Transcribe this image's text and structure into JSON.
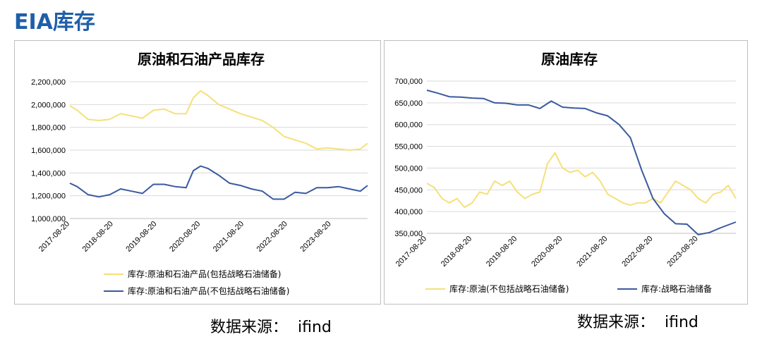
{
  "header": {
    "title": "EIA库存"
  },
  "sources": {
    "left": "数据来源：  ifind",
    "right": "数据来源：  ifind"
  },
  "colors": {
    "yellow": "#f5e07a",
    "blue": "#3a5aa0",
    "grid": "#d9d9d9",
    "title_blue": "#1f5fa9"
  },
  "chart_data": [
    {
      "type": "line",
      "title": "原油和石油产品库存",
      "ylim": [
        1000000,
        2200000
      ],
      "yticks": [
        "1,000,000",
        "1,200,000",
        "1,400,000",
        "1,600,000",
        "1,800,000",
        "2,000,000",
        "2,200,000"
      ],
      "ytick_values": [
        1000000,
        1200000,
        1400000,
        1600000,
        1800000,
        2000000,
        2200000
      ],
      "xticks": [
        "2017-08-20",
        "2018-08-20",
        "2019-08-20",
        "2020-08-20",
        "2021-08-20",
        "2022-08-20",
        "2023-08-20"
      ],
      "x_start": "2017-08",
      "x_end": "2024-06",
      "series": [
        {
          "name": "库存:原油和石油产品(包括战略石油储备)",
          "color": "#f5e07a",
          "x": [
            "2017-08",
            "2017-10",
            "2018-01",
            "2018-04",
            "2018-07",
            "2018-10",
            "2019-01",
            "2019-04",
            "2019-07",
            "2019-10",
            "2020-01",
            "2020-04",
            "2020-06",
            "2020-08",
            "2020-10",
            "2021-01",
            "2021-04",
            "2021-07",
            "2021-10",
            "2022-01",
            "2022-04",
            "2022-07",
            "2022-10",
            "2023-01",
            "2023-04",
            "2023-07",
            "2023-10",
            "2024-01",
            "2024-04",
            "2024-06"
          ],
          "values": [
            1990000,
            1950000,
            1870000,
            1860000,
            1870000,
            1920000,
            1900000,
            1880000,
            1950000,
            1960000,
            1920000,
            1920000,
            2060000,
            2120000,
            2080000,
            2000000,
            1960000,
            1920000,
            1890000,
            1860000,
            1800000,
            1720000,
            1690000,
            1660000,
            1610000,
            1620000,
            1610000,
            1600000,
            1610000,
            1660000
          ]
        },
        {
          "name": "库存:原油和石油产品(不包括战略石油储备)",
          "color": "#3a5aa0",
          "x": [
            "2017-08",
            "2017-10",
            "2018-01",
            "2018-04",
            "2018-07",
            "2018-10",
            "2019-01",
            "2019-04",
            "2019-07",
            "2019-10",
            "2020-01",
            "2020-04",
            "2020-06",
            "2020-08",
            "2020-10",
            "2021-01",
            "2021-04",
            "2021-07",
            "2021-10",
            "2022-01",
            "2022-04",
            "2022-07",
            "2022-10",
            "2023-01",
            "2023-04",
            "2023-07",
            "2023-10",
            "2024-01",
            "2024-04",
            "2024-06"
          ],
          "values": [
            1310000,
            1280000,
            1210000,
            1190000,
            1210000,
            1260000,
            1240000,
            1220000,
            1300000,
            1300000,
            1280000,
            1270000,
            1420000,
            1460000,
            1440000,
            1380000,
            1310000,
            1290000,
            1260000,
            1240000,
            1170000,
            1170000,
            1230000,
            1220000,
            1270000,
            1270000,
            1280000,
            1260000,
            1240000,
            1290000
          ]
        }
      ]
    },
    {
      "type": "line",
      "title": "原油库存",
      "ylim": [
        350000,
        700000
      ],
      "yticks": [
        "350,000",
        "400,000",
        "450,000",
        "500,000",
        "550,000",
        "600,000",
        "650,000",
        "700,000"
      ],
      "ytick_values": [
        350000,
        400000,
        450000,
        500000,
        550000,
        600000,
        650000,
        700000
      ],
      "xticks": [
        "2017-08-20",
        "2018-08-20",
        "2019-08-20",
        "2020-08-20",
        "2021-08-20",
        "2022-08-20",
        "2023-08-20"
      ],
      "x_start": "2017-08",
      "x_end": "2024-06",
      "series": [
        {
          "name": "库存:原油(不包括战略石油储备)",
          "color": "#f5e07a",
          "x": [
            "2017-08",
            "2017-10",
            "2017-12",
            "2018-02",
            "2018-04",
            "2018-06",
            "2018-08",
            "2018-10",
            "2018-12",
            "2019-02",
            "2019-04",
            "2019-06",
            "2019-08",
            "2019-10",
            "2019-12",
            "2020-02",
            "2020-04",
            "2020-06",
            "2020-08",
            "2020-10",
            "2020-12",
            "2021-02",
            "2021-04",
            "2021-06",
            "2021-08",
            "2021-10",
            "2021-12",
            "2022-02",
            "2022-04",
            "2022-06",
            "2022-08",
            "2022-10",
            "2022-12",
            "2023-02",
            "2023-04",
            "2023-06",
            "2023-08",
            "2023-10",
            "2023-12",
            "2024-02",
            "2024-04",
            "2024-06"
          ],
          "values": [
            465000,
            455000,
            430000,
            420000,
            430000,
            410000,
            420000,
            445000,
            440000,
            470000,
            460000,
            470000,
            445000,
            430000,
            440000,
            445000,
            510000,
            535000,
            500000,
            490000,
            495000,
            480000,
            490000,
            470000,
            440000,
            430000,
            420000,
            415000,
            420000,
            420000,
            430000,
            420000,
            445000,
            470000,
            460000,
            450000,
            430000,
            420000,
            440000,
            445000,
            460000,
            430000
          ]
        },
        {
          "name": "库存:战略石油储备",
          "color": "#3a5aa0",
          "x": [
            "2017-08",
            "2017-11",
            "2018-02",
            "2018-05",
            "2018-08",
            "2018-11",
            "2019-02",
            "2019-05",
            "2019-08",
            "2019-11",
            "2020-02",
            "2020-05",
            "2020-08",
            "2020-11",
            "2021-02",
            "2021-05",
            "2021-08",
            "2021-11",
            "2022-02",
            "2022-05",
            "2022-08",
            "2022-11",
            "2023-02",
            "2023-05",
            "2023-08",
            "2023-11",
            "2024-02",
            "2024-06"
          ],
          "values": [
            679000,
            672000,
            664000,
            663000,
            661000,
            660000,
            650000,
            649000,
            645000,
            645000,
            637000,
            654000,
            640000,
            638000,
            637000,
            627000,
            620000,
            600000,
            570000,
            495000,
            430000,
            395000,
            372000,
            371000,
            347000,
            352000,
            363000,
            376000
          ]
        }
      ]
    }
  ]
}
